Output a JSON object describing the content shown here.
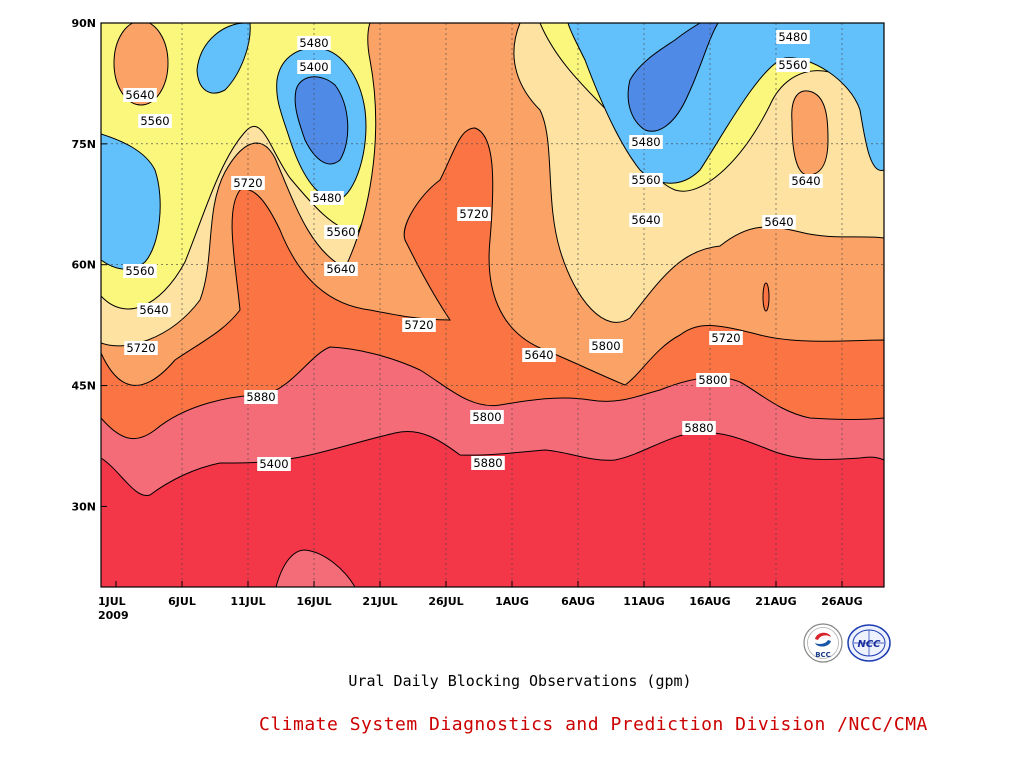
{
  "chart_data": {
    "type": "contour",
    "title": "Ural Daily Blocking Observations (gpm)",
    "x_ticks": [
      "1JUL",
      "6JUL",
      "11JUL",
      "16JUL",
      "21JUL",
      "26JUL",
      "1AUG",
      "6AUG",
      "11AUG",
      "16AUG",
      "21AUG",
      "26AUG"
    ],
    "x_start_label": "2009",
    "y_ticks": [
      "30N",
      "45N",
      "60N",
      "75N",
      "90N"
    ],
    "y_tick_values": [
      30,
      45,
      60,
      75,
      90
    ],
    "ylim": [
      20,
      90
    ],
    "x_range": [
      "1 Jul 2009",
      "30 Aug 2009"
    ],
    "contour_levels": [
      5400,
      5480,
      5560,
      5640,
      5720,
      5800,
      5880
    ],
    "level_colors": {
      "below_5400": "#4f8be6",
      "5400_5480": "#62c0fb",
      "5480_5560": "#fbf67c",
      "5560_5640": "#fde2a2",
      "5640_5720": "#fba266",
      "5720_5800": "#fb7444",
      "5800_5880": "#f36c78",
      "above_5880": "#f43649"
    },
    "contour_labels": [
      "5480",
      "5400",
      "5640",
      "5560",
      "5720",
      "5480",
      "5560",
      "5640",
      "5560",
      "5640",
      "5720",
      "5720",
      "5720",
      "5640",
      "5800",
      "5800",
      "5880",
      "5880",
      "5400",
      "5480",
      "5560",
      "5640",
      "5720",
      "5800",
      "5880",
      "5480",
      "5560",
      "5640",
      "5640"
    ],
    "grid": true
  },
  "footer": {
    "caption": "Ural Daily Blocking Observations (gpm)",
    "credit": "Climate System Diagnostics and Prediction Division /NCC/CMA",
    "credit_color": "#cc0000",
    "logos": [
      {
        "icon": "bcc-logo",
        "text": "BCC"
      },
      {
        "icon": "ncc-logo",
        "text": "NCC"
      }
    ]
  }
}
